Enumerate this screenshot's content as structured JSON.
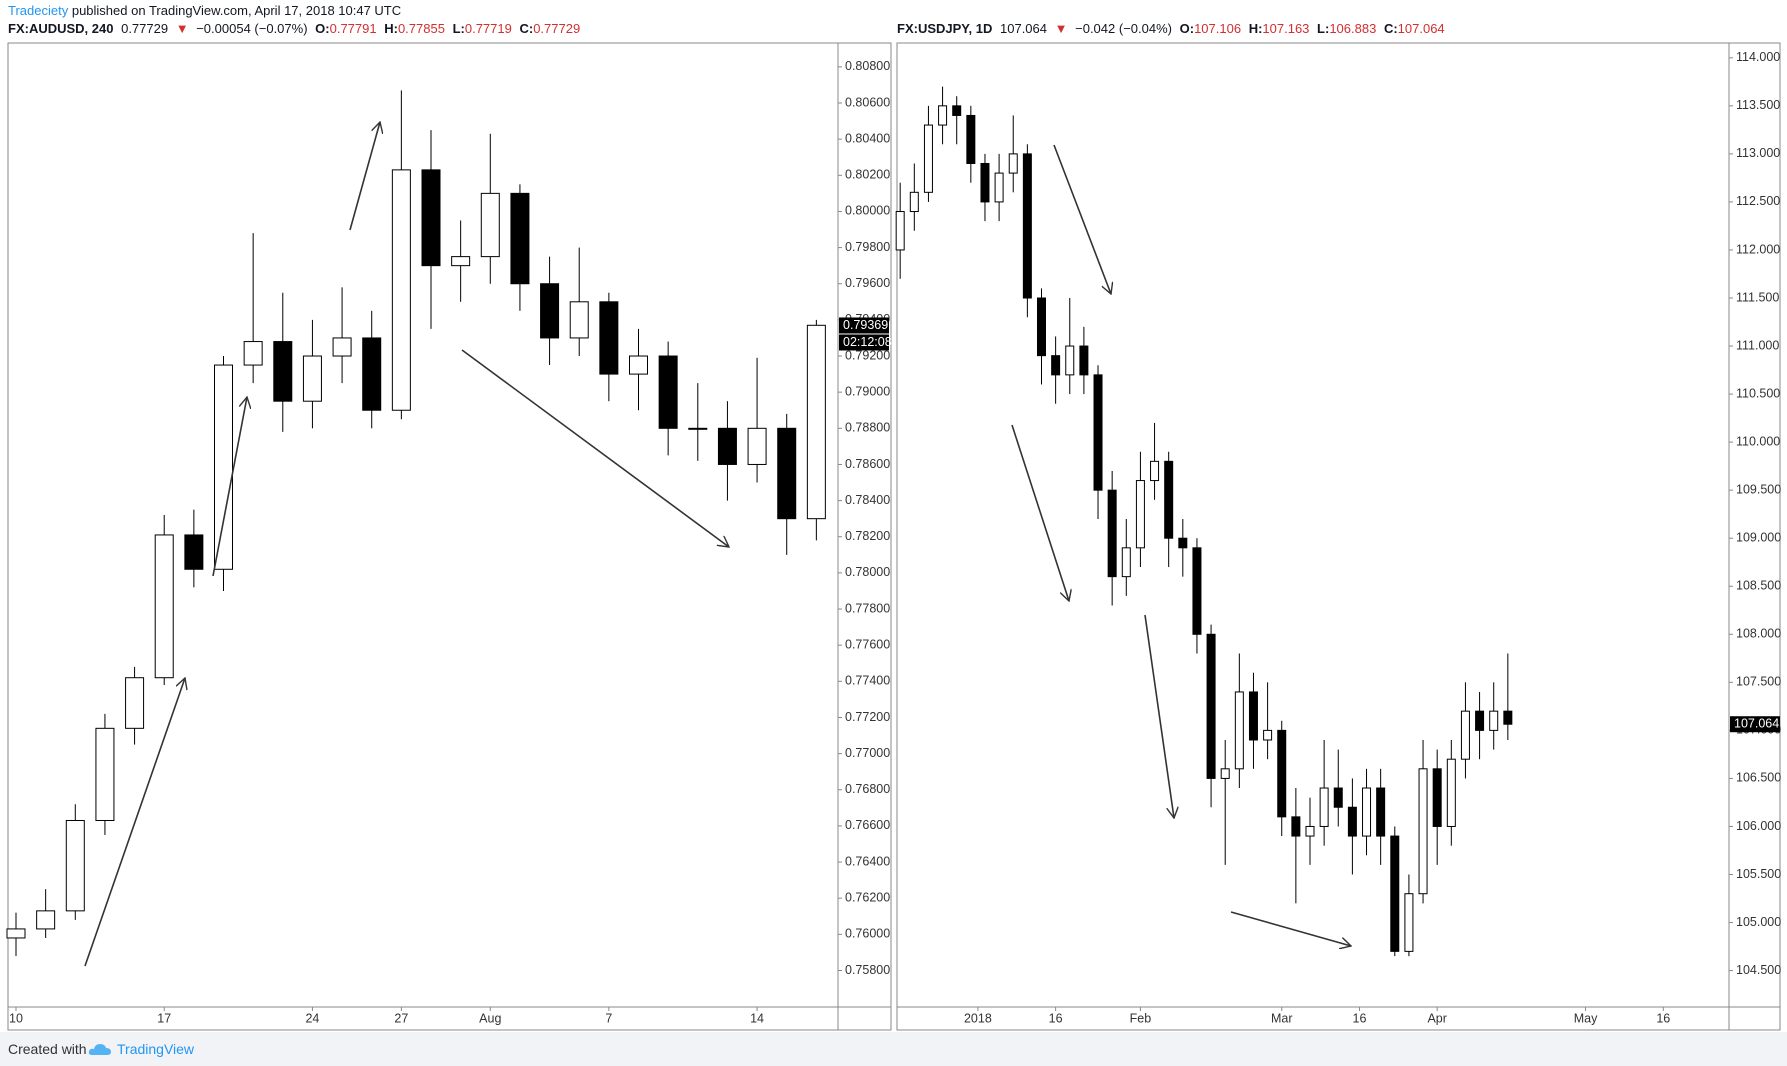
{
  "header": {
    "author": "Tradeciety",
    "published": "published on TradingView.com, April 17, 2018 10:47 UTC"
  },
  "footer": {
    "created": "Created with",
    "brand": "TradingView"
  },
  "chart_data": [
    {
      "type": "candlestick",
      "symbol": "FX:AUDUSD, 240",
      "last": "0.77729",
      "change_arrow": "▼",
      "change": "−0.00054 (−0.07%)",
      "ohlc_labels": [
        {
          "key": "O:",
          "value": "0.77791"
        },
        {
          "key": "H:",
          "value": "0.77855"
        },
        {
          "key": "L:",
          "value": "0.77719"
        },
        {
          "key": "C:",
          "value": "0.77729"
        }
      ],
      "up_color": "#ffffff",
      "down_color": "#000000",
      "wick_color": "#000000",
      "x": [
        0,
        1,
        2,
        3,
        4,
        5,
        6,
        7,
        8,
        9,
        10,
        11,
        12,
        13,
        14,
        15,
        16,
        17,
        18,
        19,
        20,
        21,
        22,
        23,
        24,
        25,
        26,
        27
      ],
      "open": [
        0.7598,
        0.7603,
        0.7613,
        0.7663,
        0.7714,
        0.7742,
        0.7821,
        0.7802,
        0.7915,
        0.7928,
        0.7895,
        0.792,
        0.793,
        0.789,
        0.8023,
        0.797,
        0.7975,
        0.801,
        0.796,
        0.793,
        0.795,
        0.791,
        0.792,
        0.788,
        0.788,
        0.786,
        0.788,
        0.783
      ],
      "high": [
        0.7612,
        0.7625,
        0.7672,
        0.7722,
        0.7748,
        0.7832,
        0.7835,
        0.792,
        0.7988,
        0.7955,
        0.794,
        0.7958,
        0.7945,
        0.8067,
        0.8045,
        0.7995,
        0.8043,
        0.8015,
        0.7975,
        0.798,
        0.7955,
        0.7935,
        0.7928,
        0.7905,
        0.7895,
        0.7919,
        0.7888,
        0.794
      ],
      "low": [
        0.7588,
        0.7598,
        0.7608,
        0.7655,
        0.7705,
        0.7738,
        0.7792,
        0.779,
        0.7905,
        0.7878,
        0.788,
        0.7905,
        0.788,
        0.7885,
        0.7935,
        0.795,
        0.796,
        0.7945,
        0.7915,
        0.792,
        0.7895,
        0.789,
        0.7865,
        0.7862,
        0.784,
        0.785,
        0.781,
        0.7818
      ],
      "close": [
        0.7603,
        0.7613,
        0.7663,
        0.7714,
        0.7742,
        0.7821,
        0.7802,
        0.7915,
        0.7928,
        0.7895,
        0.792,
        0.793,
        0.789,
        0.8023,
        0.797,
        0.7975,
        0.801,
        0.796,
        0.793,
        0.795,
        0.791,
        0.792,
        0.788,
        0.788,
        0.786,
        0.788,
        0.783,
        0.7937
      ],
      "xlim": [
        -0.27,
        27.73
      ],
      "ylim": [
        0.75598,
        0.80932
      ],
      "xticks": [
        {
          "value": 0,
          "label": "10"
        },
        {
          "value": 5,
          "label": "17"
        },
        {
          "value": 10,
          "label": "24"
        },
        {
          "value": 13,
          "label": "27"
        },
        {
          "value": 16,
          "label": "Aug"
        },
        {
          "value": 20,
          "label": "7"
        },
        {
          "value": 25,
          "label": "14"
        }
      ],
      "yticks": [
        {
          "value": 0.758,
          "label": "0.75800"
        },
        {
          "value": 0.76,
          "label": "0.76000"
        },
        {
          "value": 0.762,
          "label": "0.76200"
        },
        {
          "value": 0.764,
          "label": "0.76400"
        },
        {
          "value": 0.766,
          "label": "0.76600"
        },
        {
          "value": 0.768,
          "label": "0.76800"
        },
        {
          "value": 0.77,
          "label": "0.77000"
        },
        {
          "value": 0.772,
          "label": "0.77200"
        },
        {
          "value": 0.774,
          "label": "0.77400"
        },
        {
          "value": 0.776,
          "label": "0.77600"
        },
        {
          "value": 0.778,
          "label": "0.77800"
        },
        {
          "value": 0.78,
          "label": "0.78000"
        },
        {
          "value": 0.782,
          "label": "0.78200"
        },
        {
          "value": 0.784,
          "label": "0.78400"
        },
        {
          "value": 0.786,
          "label": "0.78600"
        },
        {
          "value": 0.788,
          "label": "0.78800"
        },
        {
          "value": 0.79,
          "label": "0.79000"
        },
        {
          "value": 0.792,
          "label": "0.79200"
        },
        {
          "value": 0.794,
          "label": "0.79400"
        },
        {
          "value": 0.796,
          "label": "0.79600"
        },
        {
          "value": 0.798,
          "label": "0.79800"
        },
        {
          "value": 0.8,
          "label": "0.80000"
        },
        {
          "value": 0.802,
          "label": "0.80200"
        },
        {
          "value": 0.804,
          "label": "0.80400"
        },
        {
          "value": 0.806,
          "label": "0.80600"
        },
        {
          "value": 0.808,
          "label": "0.80800"
        }
      ],
      "last_price": {
        "value": 0.79369,
        "label": "0.79369"
      },
      "countdown": "02:12:08"
    },
    {
      "type": "candlestick",
      "symbol": "FX:USDJPY, 1D",
      "last": "107.064",
      "change_arrow": "▼",
      "change": "−0.042 (−0.04%)",
      "ohlc_labels": [
        {
          "key": "O:",
          "value": "107.106"
        },
        {
          "key": "H:",
          "value": "107.163"
        },
        {
          "key": "L:",
          "value": "106.883"
        },
        {
          "key": "C:",
          "value": "107.064"
        }
      ],
      "up_color": "#ffffff",
      "down_color": "#000000",
      "wick_color": "#000000",
      "x": [
        -11,
        -9,
        -7,
        -5,
        -3,
        -1,
        1,
        3,
        5,
        7,
        9,
        11,
        13,
        15,
        17,
        19,
        21,
        23,
        25,
        27,
        29,
        31,
        33,
        35,
        37,
        39,
        41,
        43,
        45,
        47,
        49,
        51,
        53,
        55,
        57,
        59,
        61,
        63,
        65,
        67,
        69,
        71,
        73,
        75
      ],
      "open": [
        112.0,
        112.4,
        112.6,
        113.3,
        113.5,
        113.4,
        112.9,
        112.5,
        112.8,
        113.0,
        111.5,
        110.9,
        110.7,
        111.0,
        110.7,
        109.5,
        108.6,
        108.9,
        109.6,
        109.8,
        109.0,
        108.9,
        108.0,
        106.5,
        106.6,
        107.4,
        106.9,
        107.0,
        106.1,
        105.9,
        106.0,
        106.4,
        106.2,
        105.9,
        106.4,
        105.9,
        104.7,
        105.3,
        106.6,
        106.0,
        106.7,
        107.2,
        107.0,
        107.2
      ],
      "high": [
        112.7,
        112.9,
        113.5,
        113.7,
        113.6,
        113.5,
        113.0,
        113.0,
        113.4,
        113.1,
        111.6,
        111.1,
        111.5,
        111.2,
        110.8,
        109.7,
        109.2,
        109.9,
        110.2,
        109.9,
        109.2,
        109.0,
        108.1,
        106.9,
        107.8,
        107.6,
        107.5,
        107.1,
        106.4,
        106.3,
        106.9,
        106.8,
        106.5,
        106.6,
        106.6,
        106.0,
        105.5,
        106.9,
        106.8,
        106.9,
        107.5,
        107.4,
        107.5,
        107.8
      ],
      "low": [
        111.7,
        112.2,
        112.5,
        113.1,
        113.1,
        112.7,
        112.3,
        112.3,
        112.6,
        111.3,
        110.6,
        110.4,
        110.5,
        110.5,
        109.2,
        108.3,
        108.4,
        108.7,
        109.4,
        108.7,
        108.6,
        107.8,
        106.2,
        105.6,
        106.4,
        106.6,
        106.7,
        105.9,
        105.2,
        105.6,
        105.8,
        106.0,
        105.5,
        105.7,
        105.6,
        104.65,
        104.65,
        105.2,
        105.6,
        105.8,
        106.5,
        106.7,
        106.8,
        106.9
      ],
      "close": [
        112.4,
        112.6,
        113.3,
        113.5,
        113.4,
        112.9,
        112.5,
        112.8,
        113.0,
        111.5,
        110.9,
        110.7,
        111.0,
        110.7,
        109.5,
        108.6,
        108.9,
        109.6,
        109.8,
        109.0,
        108.9,
        108.0,
        106.5,
        106.6,
        107.4,
        106.9,
        107.0,
        106.1,
        105.9,
        106.0,
        106.4,
        106.2,
        105.9,
        106.4,
        105.9,
        104.7,
        105.3,
        106.6,
        106.0,
        106.7,
        107.2,
        107.0,
        107.2,
        107.064
      ],
      "xlim": [
        -11.45,
        106.3
      ],
      "ylim": [
        104.121,
        114.154
      ],
      "xticks": [
        {
          "value": 0,
          "label": "2018"
        },
        {
          "value": 11,
          "label": "16"
        },
        {
          "value": 23,
          "label": "Feb"
        },
        {
          "value": 43,
          "label": "Mar"
        },
        {
          "value": 54,
          "label": "16"
        },
        {
          "value": 65,
          "label": "Apr"
        },
        {
          "value": 86,
          "label": "May"
        },
        {
          "value": 97,
          "label": "16"
        }
      ],
      "yticks": [
        {
          "value": 104.5,
          "label": "104.500"
        },
        {
          "value": 105,
          "label": "105.000"
        },
        {
          "value": 105.5,
          "label": "105.500"
        },
        {
          "value": 106,
          "label": "106.000"
        },
        {
          "value": 106.5,
          "label": "106.500"
        },
        {
          "value": 107,
          "label": "107.000"
        },
        {
          "value": 107.5,
          "label": "107.500"
        },
        {
          "value": 108,
          "label": "108.000"
        },
        {
          "value": 108.5,
          "label": "108.500"
        },
        {
          "value": 109,
          "label": "109.000"
        },
        {
          "value": 109.5,
          "label": "109.500"
        },
        {
          "value": 110,
          "label": "110.000"
        },
        {
          "value": 110.5,
          "label": "110.500"
        },
        {
          "value": 111,
          "label": "111.000"
        },
        {
          "value": 111.5,
          "label": "111.500"
        },
        {
          "value": 112,
          "label": "112.000"
        },
        {
          "value": 112.5,
          "label": "112.500"
        },
        {
          "value": 113,
          "label": "113.000"
        },
        {
          "value": 113.5,
          "label": "113.500"
        },
        {
          "value": 114,
          "label": "114.000"
        }
      ],
      "last_price": {
        "value": 107.064,
        "label": "107.064"
      }
    }
  ]
}
